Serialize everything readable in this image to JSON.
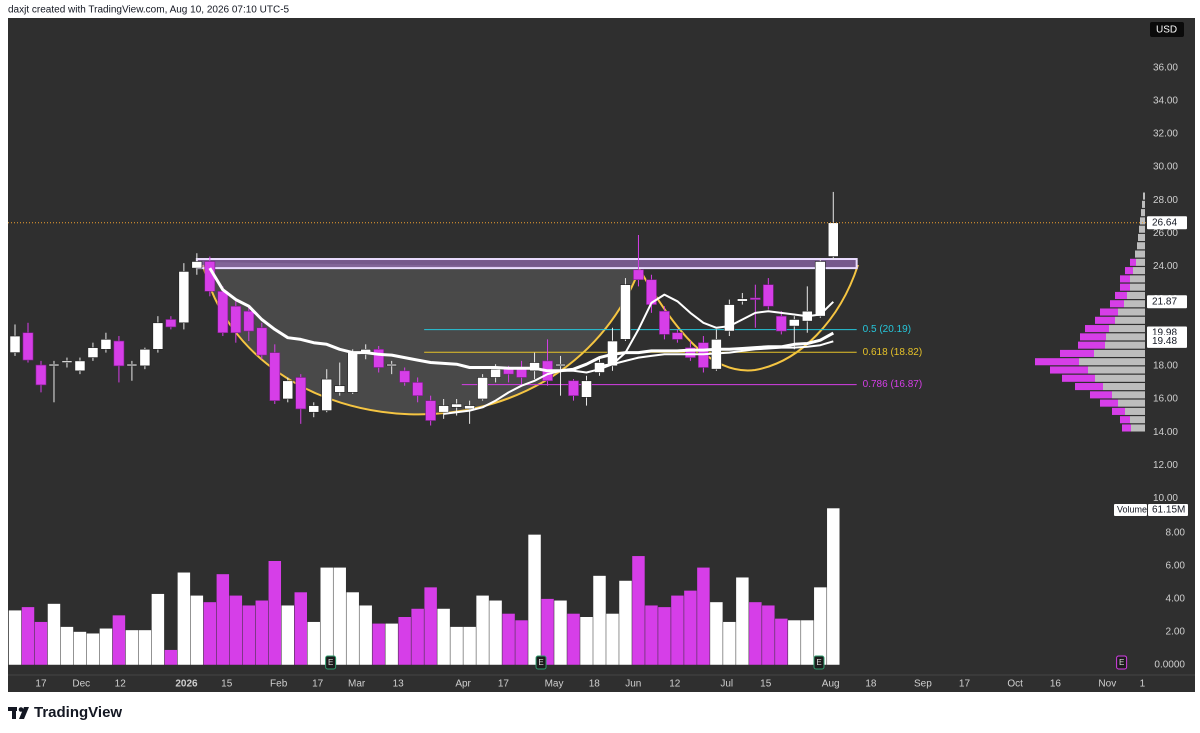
{
  "header": {
    "text": "daxjt created with TradingView.com, Aug 10, 2026 07:10 UTC-5"
  },
  "footer": {
    "logo_text": "TradingView"
  },
  "chart_data": {
    "type": "candlestick",
    "currency": "USD",
    "up_color": "#ffffff",
    "down_color": "#d63ee8",
    "grid": false,
    "xlim": [
      -0.54,
      87.0
    ],
    "xticks": [
      {
        "value": 2.0,
        "label": "17"
      },
      {
        "value": 5.1,
        "label": "Dec"
      },
      {
        "value": 8.1,
        "label": "12"
      },
      {
        "value": 13.2,
        "label": "2026"
      },
      {
        "value": 16.3,
        "label": "15"
      },
      {
        "value": 20.3,
        "label": "Feb"
      },
      {
        "value": 23.3,
        "label": "17"
      },
      {
        "value": 26.3,
        "label": "Mar"
      },
      {
        "value": 29.5,
        "label": "13"
      },
      {
        "value": 34.5,
        "label": "Apr"
      },
      {
        "value": 37.6,
        "label": "17"
      },
      {
        "value": 41.5,
        "label": "May"
      },
      {
        "value": 44.6,
        "label": "18"
      },
      {
        "value": 47.6,
        "label": "Jun"
      },
      {
        "value": 50.8,
        "label": "12"
      },
      {
        "value": 54.8,
        "label": "Jul"
      },
      {
        "value": 57.8,
        "label": "15"
      },
      {
        "value": 62.8,
        "label": "Aug"
      },
      {
        "value": 65.9,
        "label": "18"
      },
      {
        "value": 69.9,
        "label": "Sep"
      },
      {
        "value": 73.1,
        "label": "17"
      },
      {
        "value": 77.0,
        "label": "Oct"
      },
      {
        "value": 80.1,
        "label": "16"
      },
      {
        "value": 84.1,
        "label": "Nov"
      },
      {
        "value": 86.8,
        "label": "1"
      }
    ],
    "ylim": [
      9.6,
      39.0
    ],
    "yticks": [
      {
        "value": 10,
        "label": "10.00"
      },
      {
        "value": 12,
        "label": "12.00"
      },
      {
        "value": 14,
        "label": "14.00"
      },
      {
        "value": 16,
        "label": "16.00"
      },
      {
        "value": 18,
        "label": "18.00"
      },
      {
        "value": 20,
        "label": "20.00"
      },
      {
        "value": 22,
        "label": "22.00"
      },
      {
        "value": 24,
        "label": "24.00"
      },
      {
        "value": 26,
        "label": "26.00"
      },
      {
        "value": 28,
        "label": "28.00"
      },
      {
        "value": 30,
        "label": "30.00"
      },
      {
        "value": 32,
        "label": "32.00"
      },
      {
        "value": 34,
        "label": "34.00"
      },
      {
        "value": 36,
        "label": "36.00"
      }
    ],
    "open": [
      18.8,
      20.0,
      18.05,
      18.0,
      18.2,
      17.7,
      18.5,
      19.0,
      19.5,
      18.0,
      18.0,
      19.0,
      20.8,
      20.6,
      23.9,
      24.3,
      22.5,
      21.6,
      21.3,
      20.3,
      18.8,
      16.0,
      17.3,
      15.2,
      15.3,
      16.4,
      16.4,
      18.7,
      19.0,
      18.0,
      17.7,
      17.0,
      15.9,
      15.2,
      15.5,
      15.4,
      16.0,
      17.3,
      17.8,
      17.9,
      17.7,
      18.3,
      18.0,
      17.1,
      16.1,
      17.6,
      18.0,
      19.6,
      23.8,
      23.2,
      21.3,
      20.0,
      19.1,
      19.4,
      17.8,
      20.1,
      21.9,
      22.1,
      22.9,
      21.0,
      20.4,
      20.7,
      21.0,
      24.6
    ],
    "high": [
      20.5,
      20.6,
      18.3,
      18.3,
      18.5,
      18.5,
      19.4,
      20.0,
      19.8,
      18.3,
      19.1,
      21.0,
      21.0,
      24.2,
      24.8,
      24.6,
      22.8,
      21.9,
      21.6,
      20.6,
      19.3,
      17.3,
      17.5,
      15.8,
      17.8,
      18.2,
      19.0,
      19.3,
      19.2,
      18.3,
      17.9,
      17.3,
      16.2,
      16.0,
      16.0,
      15.9,
      17.5,
      18.1,
      18.0,
      18.3,
      18.8,
      19.6,
      18.6,
      17.2,
      17.4,
      18.5,
      20.3,
      23.3,
      25.9,
      23.5,
      21.6,
      20.2,
      19.5,
      19.8,
      20.2,
      22.0,
      22.4,
      22.9,
      23.3,
      21.3,
      21.0,
      22.8,
      24.5,
      28.5
    ],
    "low": [
      18.6,
      18.2,
      16.4,
      15.8,
      17.9,
      17.5,
      18.3,
      18.8,
      17.0,
      17.1,
      17.8,
      18.8,
      20.2,
      20.2,
      23.5,
      22.2,
      19.8,
      19.4,
      19.5,
      18.4,
      15.7,
      15.8,
      14.5,
      14.9,
      15.2,
      16.2,
      16.3,
      18.4,
      17.6,
      17.5,
      16.8,
      15.8,
      14.4,
      14.8,
      15.0,
      14.5,
      15.9,
      17.0,
      17.0,
      16.8,
      17.2,
      16.8,
      16.2,
      15.9,
      15.6,
      17.4,
      17.7,
      19.5,
      22.8,
      21.2,
      19.6,
      19.4,
      18.3,
      17.6,
      17.7,
      19.8,
      21.7,
      20.3,
      21.4,
      19.9,
      19.0,
      20.0,
      20.9,
      24.4
    ],
    "close": [
      19.8,
      18.35,
      16.85,
      18.1,
      18.3,
      18.3,
      19.1,
      19.6,
      18.0,
      18.1,
      19.0,
      20.6,
      20.35,
      23.7,
      24.3,
      22.5,
      20.0,
      20.0,
      20.1,
      18.65,
      15.9,
      17.1,
      15.4,
      15.6,
      17.2,
      16.8,
      18.8,
      19.0,
      17.9,
      18.1,
      17.0,
      16.2,
      14.7,
      15.6,
      15.7,
      15.6,
      17.3,
      17.8,
      17.5,
      17.3,
      18.2,
      17.1,
      18.1,
      16.2,
      17.1,
      18.2,
      19.5,
      22.9,
      23.2,
      21.7,
      19.9,
      19.6,
      18.5,
      17.9,
      19.6,
      21.7,
      22.05,
      22.0,
      21.6,
      20.1,
      20.8,
      21.3,
      24.3,
      26.64
    ],
    "volume": {
      "label": "Volume",
      "value_label": "61.15M",
      "y2lim": [
        -0.5,
        9.7
      ],
      "y2ticks": [
        {
          "value": 0,
          "label": "0.0000"
        },
        {
          "value": 2,
          "label": "2.00"
        },
        {
          "value": 4,
          "label": "4.00"
        },
        {
          "value": 6,
          "label": "6.00"
        },
        {
          "value": 8,
          "label": "8.00"
        }
      ],
      "values": [
        3.3,
        3.5,
        2.6,
        3.7,
        2.3,
        2.0,
        1.9,
        2.2,
        3.0,
        2.1,
        2.1,
        4.3,
        0.9,
        5.6,
        4.2,
        3.8,
        5.5,
        4.2,
        3.6,
        3.9,
        6.3,
        3.6,
        4.4,
        2.6,
        5.9,
        5.9,
        4.4,
        3.6,
        2.5,
        2.5,
        2.9,
        3.4,
        4.7,
        3.4,
        2.3,
        2.3,
        4.2,
        3.9,
        3.1,
        2.7,
        7.9,
        4.0,
        3.9,
        3.1,
        2.9,
        5.4,
        3.1,
        5.1,
        6.6,
        3.6,
        3.5,
        4.2,
        4.5,
        5.9,
        3.8,
        2.6,
        5.3,
        3.8,
        3.6,
        2.8,
        2.7,
        2.7,
        4.7,
        9.5
      ]
    },
    "moving_averages": [
      {
        "color": "#ffffff",
        "width": 3,
        "values": [
          null,
          null,
          null,
          null,
          null,
          null,
          null,
          null,
          null,
          null,
          null,
          null,
          null,
          null,
          null,
          23.9,
          22.6,
          22.0,
          21.6,
          20.8,
          20.2,
          19.7,
          19.6,
          19.4,
          19.3,
          19.0,
          18.8,
          18.8,
          18.7,
          18.65,
          18.5,
          18.35,
          18.2,
          18.15,
          18.1,
          17.9,
          17.9,
          17.9,
          17.85,
          17.85,
          17.85,
          17.7,
          17.7,
          17.8,
          18.1,
          18.5,
          18.7,
          18.8,
          18.8,
          18.9,
          18.9,
          18.9,
          18.95,
          18.95,
          19.0,
          19.0,
          19.05,
          19.1,
          19.15,
          19.15,
          19.3,
          19.35,
          19.55,
          19.98
        ]
      },
      {
        "color": "#ffffff",
        "width": 2,
        "values": [
          null,
          null,
          null,
          null,
          null,
          null,
          null,
          null,
          null,
          null,
          null,
          null,
          null,
          null,
          null,
          null,
          null,
          null,
          null,
          null,
          null,
          null,
          null,
          null,
          null,
          null,
          null,
          null,
          null,
          null,
          null,
          null,
          null,
          15.1,
          15.2,
          15.3,
          15.5,
          15.9,
          16.4,
          16.8,
          17.1,
          17.5,
          17.7,
          17.7,
          17.6,
          17.8,
          18.1,
          18.8,
          20.2,
          21.8,
          22.3,
          21.9,
          21.2,
          20.6,
          20.3,
          20.4,
          20.8,
          21.2,
          21.3,
          21.2,
          21.1,
          21.0,
          21.1,
          21.87
        ]
      },
      {
        "color": "#ffffff",
        "width": 2,
        "values": [
          null,
          null,
          null,
          null,
          null,
          null,
          null,
          null,
          null,
          null,
          null,
          null,
          null,
          null,
          null,
          null,
          null,
          null,
          null,
          null,
          null,
          null,
          null,
          null,
          null,
          null,
          null,
          null,
          null,
          null,
          null,
          null,
          null,
          null,
          null,
          null,
          null,
          null,
          null,
          null,
          null,
          null,
          null,
          null,
          null,
          18.0,
          18.1,
          18.3,
          18.5,
          18.6,
          18.7,
          18.7,
          18.7,
          18.7,
          18.75,
          18.8,
          18.9,
          19.0,
          19.05,
          19.1,
          19.1,
          19.15,
          19.25,
          19.48
        ]
      }
    ],
    "last_price_color": "#f0a030",
    "resistance_box": {
      "xlim": [
        14.0,
        64.8
      ],
      "ylim": [
        23.9,
        24.45
      ],
      "color": "#b07cd8"
    },
    "fib_levels": [
      {
        "label": "0.5 (20.19)",
        "value": 20.19,
        "color": "#26c6da",
        "xlim": [
          31.5,
          64.8
        ]
      },
      {
        "label": "0.618 (18.82)",
        "value": 18.82,
        "color": "#e6c229",
        "xlim": [
          31.5,
          64.8
        ]
      },
      {
        "label": "0.786 (16.87)",
        "value": 16.87,
        "color": "#d63ee8",
        "xlim": [
          34.4,
          64.8
        ]
      }
    ],
    "earnings": {
      "label": "E",
      "x": [
        24.3,
        40.5,
        61.9,
        85.2
      ],
      "colors": [
        "#2e9e6e",
        "#2e9e6e",
        "#2e9e6e",
        "#d63ee8"
      ]
    },
    "volume_profile": {
      "up_color": "#bdbdbd",
      "down_color": "#d63ee8",
      "prices": [
        28.25,
        27.75,
        27.25,
        26.75,
        26.25,
        25.75,
        25.25,
        24.75,
        24.25,
        23.75,
        23.25,
        22.75,
        22.25,
        21.75,
        21.25,
        20.75,
        20.25,
        19.75,
        19.25,
        18.75,
        18.25,
        17.75,
        17.25,
        16.75,
        16.25,
        15.75,
        15.25,
        14.75,
        14.25
      ],
      "up": [
        2,
        3,
        4,
        5,
        6,
        7,
        8,
        10,
        9,
        12,
        15,
        15,
        18,
        21,
        27,
        30,
        36,
        39,
        40,
        51,
        66,
        57,
        50,
        42,
        33,
        27,
        20,
        15,
        14
      ],
      "down": [
        0,
        0,
        0,
        0,
        0,
        0,
        0,
        0,
        6,
        8,
        10,
        10,
        12,
        14,
        18,
        20,
        24,
        26,
        27,
        34,
        44,
        38,
        33,
        28,
        22,
        18,
        13,
        10,
        9
      ]
    }
  }
}
